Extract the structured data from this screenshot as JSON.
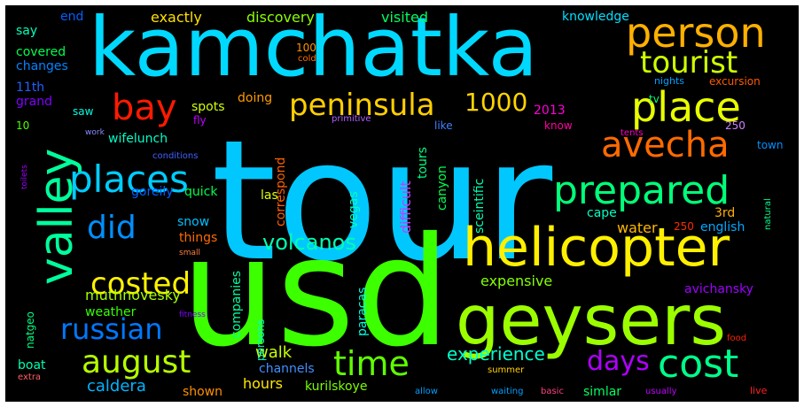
{
  "words": [
    {
      "text": "tour",
      "color": "#00c8ff"
    },
    {
      "text": "usd",
      "color": "#3cff00"
    },
    {
      "text": "kamchatka",
      "color": "#00d9ff"
    },
    {
      "text": "geysers",
      "color": "#9cff00"
    },
    {
      "text": "helicopter",
      "color": "#fff000"
    },
    {
      "text": "person",
      "color": "#ffb000"
    },
    {
      "text": "prepared",
      "color": "#00ff7a"
    },
    {
      "text": "place",
      "color": "#e8ff00"
    },
    {
      "text": "valley",
      "color": "#00ff9c"
    },
    {
      "text": "avecha",
      "color": "#ff6a00"
    },
    {
      "text": "tourist",
      "color": "#cfff00"
    },
    {
      "text": "peninsula",
      "color": "#ffcf00"
    },
    {
      "text": "places",
      "color": "#00ccff"
    },
    {
      "text": "cost",
      "color": "#00ff8a"
    },
    {
      "text": "august",
      "color": "#b6ff00"
    },
    {
      "text": "time",
      "color": "#60ff00"
    },
    {
      "text": "did",
      "color": "#0090ff"
    },
    {
      "text": "bay",
      "color": "#ff1a00"
    },
    {
      "text": "russian",
      "color": "#0078ff"
    },
    {
      "text": "costed",
      "color": "#fff200"
    },
    {
      "text": "days",
      "color": "#b000ff"
    },
    {
      "text": "1000",
      "color": "#ffd400"
    },
    {
      "text": "volcanos",
      "color": "#00ffb0"
    },
    {
      "text": "experience",
      "color": "#00ffd0"
    },
    {
      "text": "caldera",
      "color": "#00b4ff"
    },
    {
      "text": "walk",
      "color": "#c8ff00"
    },
    {
      "text": "hours",
      "color": "#ffe600"
    },
    {
      "text": "expensive",
      "color": "#86ff00"
    },
    {
      "text": "muthnovesky",
      "color": "#a8ff00"
    },
    {
      "text": "weather",
      "color": "#36ff00"
    },
    {
      "text": "water",
      "color": "#ffb800"
    },
    {
      "text": "english",
      "color": "#00a8ff"
    },
    {
      "text": "avichansky",
      "color": "#a000ff"
    },
    {
      "text": "kurilskoye",
      "color": "#7cff00"
    },
    {
      "text": "exactly",
      "color": "#ffe000"
    },
    {
      "text": "discovery",
      "color": "#8cff00"
    },
    {
      "text": "visited",
      "color": "#00ff60"
    },
    {
      "text": "knowledge",
      "color": "#00e0ff"
    },
    {
      "text": "end",
      "color": "#0060ff"
    },
    {
      "text": "say",
      "color": "#00ffb8"
    },
    {
      "text": "covered",
      "color": "#00ff50"
    },
    {
      "text": "changes",
      "color": "#0084ff"
    },
    {
      "text": "11th",
      "color": "#2060ff"
    },
    {
      "text": "grand",
      "color": "#8000ff"
    },
    {
      "text": "10",
      "color": "#4cff00"
    },
    {
      "text": "saw",
      "color": "#00ffe0"
    },
    {
      "text": "wifelunch",
      "color": "#00ffc8"
    },
    {
      "text": "spots",
      "color": "#d0ff00"
    },
    {
      "text": "doing",
      "color": "#ff9a00"
    },
    {
      "text": "quick",
      "color": "#00ff4a"
    },
    {
      "text": "goreily",
      "color": "#0060ff"
    },
    {
      "text": "snow",
      "color": "#00c0ff"
    },
    {
      "text": "things",
      "color": "#ff6a00"
    },
    {
      "text": "las",
      "color": "#e0ff00"
    },
    {
      "text": "cape",
      "color": "#00ffc0"
    },
    {
      "text": "3rd",
      "color": "#ffb000"
    },
    {
      "text": "250",
      "color": "#ff2a00"
    },
    {
      "text": "natural",
      "color": "#00ff90"
    },
    {
      "text": "2013",
      "color": "#ff00d8"
    },
    {
      "text": "tv",
      "color": "#00ff70"
    },
    {
      "text": "nights",
      "color": "#00a0ff"
    },
    {
      "text": "excursion",
      "color": "#ff5a00"
    },
    {
      "text": "like",
      "color": "#4080ff"
    },
    {
      "text": "know",
      "color": "#ff00a0"
    },
    {
      "text": "250",
      "color": "#d080ff"
    },
    {
      "text": "town",
      "color": "#0090ff"
    },
    {
      "text": "tents",
      "color": "#ff00c0"
    },
    {
      "text": "100",
      "color": "#ff9000"
    },
    {
      "text": "cold",
      "color": "#ff7000"
    },
    {
      "text": "fly",
      "color": "#c000ff"
    },
    {
      "text": "primitive",
      "color": "#b060ff"
    },
    {
      "text": "work",
      "color": "#8c8cff"
    },
    {
      "text": "conditions",
      "color": "#4060ff"
    },
    {
      "text": "toilets",
      "color": "#a000ff"
    },
    {
      "text": "small",
      "color": "#ff8040"
    },
    {
      "text": "natgeo",
      "color": "#00ff80"
    },
    {
      "text": "fitness",
      "color": "#8000ff"
    },
    {
      "text": "persons",
      "color": "#00ffd0"
    },
    {
      "text": "boat",
      "color": "#00ffb0"
    },
    {
      "text": "extra",
      "color": "#ff6060"
    },
    {
      "text": "channels",
      "color": "#4090ff"
    },
    {
      "text": "shown",
      "color": "#ff9000"
    },
    {
      "text": "allow",
      "color": "#00a0ff"
    },
    {
      "text": "waiting",
      "color": "#00a0ff"
    },
    {
      "text": "basic",
      "color": "#ff4080"
    },
    {
      "text": "simlar",
      "color": "#00ff60"
    },
    {
      "text": "usually",
      "color": "#c000ff"
    },
    {
      "text": "live",
      "color": "#ff2020"
    },
    {
      "text": "summer",
      "color": "#ffd000"
    },
    {
      "text": "food",
      "color": "#ff2000"
    },
    {
      "text": "companies",
      "color": "#00ffa0"
    },
    {
      "text": "paracas",
      "color": "#00ffe0"
    },
    {
      "text": "correspond",
      "color": "#ff6000"
    },
    {
      "text": "difficult",
      "color": "#c040ff"
    },
    {
      "text": "vegas",
      "color": "#00ffc0"
    },
    {
      "text": "tours",
      "color": "#00ff80"
    },
    {
      "text": "canyon",
      "color": "#00ff50"
    },
    {
      "text": "sceintific",
      "color": "#00ffb0"
    }
  ]
}
